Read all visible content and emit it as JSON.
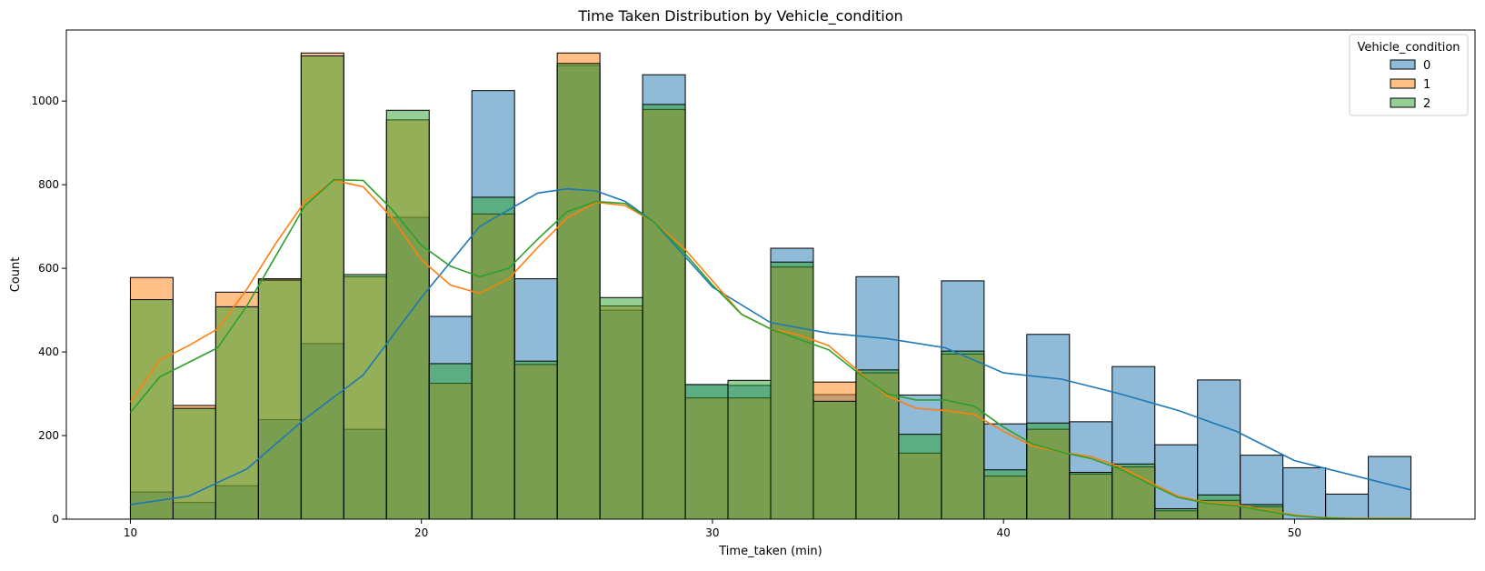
{
  "chart_data": {
    "type": "histogram",
    "title": "Time Taken Distribution by Vehicle_condition",
    "xlabel": "Time_taken (min)",
    "ylabel": "Count",
    "xlim": [
      7.8,
      56.2
    ],
    "ylim": [
      0,
      1170
    ],
    "x_ticks": [
      10,
      20,
      30,
      40,
      50
    ],
    "y_ticks": [
      0,
      200,
      400,
      600,
      800,
      1000
    ],
    "bin_edges": [
      10,
      11.467,
      12.933,
      14.4,
      15.867,
      17.333,
      18.8,
      20.267,
      21.733,
      23.2,
      24.667,
      26.133,
      27.6,
      29.067,
      30.533,
      32,
      33.467,
      34.933,
      36.4,
      37.867,
      39.333,
      40.8,
      42.267,
      43.733,
      45.2,
      46.667,
      48.133,
      49.6,
      51.067,
      52.533,
      54
    ],
    "legend": {
      "title": "Vehicle_condition",
      "placement": "upper right"
    },
    "series": [
      {
        "name": "0",
        "color": "#1f77b4",
        "values": [
          65,
          40,
          80,
          238,
          420,
          215,
          722,
          485,
          1025,
          575,
          1085,
          500,
          1063,
          322,
          320,
          648,
          298,
          580,
          297,
          570,
          228,
          442,
          233,
          365,
          178,
          333,
          153,
          123,
          60,
          150
        ],
        "kde": [
          [
            10,
            35
          ],
          [
            12,
            55
          ],
          [
            14,
            120
          ],
          [
            16,
            240
          ],
          [
            18,
            345
          ],
          [
            20,
            530
          ],
          [
            22,
            700
          ],
          [
            24,
            780
          ],
          [
            25,
            790
          ],
          [
            26,
            785
          ],
          [
            27,
            760
          ],
          [
            28,
            710
          ],
          [
            30,
            555
          ],
          [
            32,
            470
          ],
          [
            34,
            445
          ],
          [
            36,
            432
          ],
          [
            38,
            410
          ],
          [
            40,
            350
          ],
          [
            42,
            335
          ],
          [
            44,
            300
          ],
          [
            46,
            260
          ],
          [
            48,
            210
          ],
          [
            50,
            140
          ],
          [
            52,
            105
          ],
          [
            54,
            70
          ]
        ]
      },
      {
        "name": "1",
        "color": "#ff7f0e",
        "values": [
          578,
          272,
          543,
          575,
          1115,
          580,
          955,
          325,
          730,
          370,
          1115,
          510,
          980,
          290,
          290,
          603,
          328,
          350,
          158,
          395,
          103,
          215,
          108,
          125,
          20,
          45,
          30,
          0,
          0,
          0
        ],
        "kde": [
          [
            10,
            280
          ],
          [
            11,
            380
          ],
          [
            12,
            415
          ],
          [
            13,
            455
          ],
          [
            14,
            550
          ],
          [
            15,
            660
          ],
          [
            16,
            760
          ],
          [
            17,
            810
          ],
          [
            18,
            795
          ],
          [
            19,
            720
          ],
          [
            20,
            620
          ],
          [
            21,
            560
          ],
          [
            22,
            540
          ],
          [
            23,
            575
          ],
          [
            24,
            650
          ],
          [
            25,
            720
          ],
          [
            26,
            758
          ],
          [
            27,
            750
          ],
          [
            28,
            710
          ],
          [
            29,
            650
          ],
          [
            30,
            570
          ],
          [
            31,
            490
          ],
          [
            32,
            455
          ],
          [
            33,
            440
          ],
          [
            34,
            415
          ],
          [
            35,
            355
          ],
          [
            36,
            295
          ],
          [
            37,
            265
          ],
          [
            38,
            260
          ],
          [
            39,
            250
          ],
          [
            40,
            210
          ],
          [
            41,
            175
          ],
          [
            42,
            160
          ],
          [
            43,
            150
          ],
          [
            44,
            125
          ],
          [
            45,
            90
          ],
          [
            46,
            55
          ],
          [
            47,
            40
          ],
          [
            48,
            35
          ],
          [
            49,
            22
          ],
          [
            50,
            10
          ],
          [
            51,
            4
          ],
          [
            52,
            2
          ],
          [
            54,
            2
          ]
        ]
      },
      {
        "name": "2",
        "color": "#2ca02c",
        "values": [
          525,
          265,
          508,
          572,
          1108,
          585,
          978,
          372,
          770,
          378,
          1090,
          530,
          992,
          322,
          332,
          615,
          282,
          357,
          203,
          402,
          118,
          230,
          112,
          132,
          25,
          58,
          35,
          0,
          0,
          0
        ],
        "kde": [
          [
            10,
            255
          ],
          [
            11,
            340
          ],
          [
            12,
            375
          ],
          [
            13,
            410
          ],
          [
            14,
            510
          ],
          [
            15,
            630
          ],
          [
            16,
            750
          ],
          [
            17,
            812
          ],
          [
            18,
            810
          ],
          [
            19,
            740
          ],
          [
            20,
            655
          ],
          [
            21,
            605
          ],
          [
            22,
            580
          ],
          [
            23,
            600
          ],
          [
            24,
            670
          ],
          [
            25,
            735
          ],
          [
            26,
            760
          ],
          [
            27,
            755
          ],
          [
            28,
            710
          ],
          [
            29,
            640
          ],
          [
            30,
            560
          ],
          [
            31,
            490
          ],
          [
            32,
            455
          ],
          [
            33,
            430
          ],
          [
            34,
            405
          ],
          [
            35,
            350
          ],
          [
            36,
            300
          ],
          [
            37,
            285
          ],
          [
            38,
            285
          ],
          [
            39,
            270
          ],
          [
            40,
            220
          ],
          [
            41,
            180
          ],
          [
            42,
            160
          ],
          [
            43,
            145
          ],
          [
            44,
            120
          ],
          [
            45,
            85
          ],
          [
            46,
            52
          ],
          [
            47,
            38
          ],
          [
            48,
            32
          ],
          [
            49,
            20
          ],
          [
            50,
            8
          ],
          [
            51,
            3
          ],
          [
            52,
            1
          ],
          [
            54,
            1
          ]
        ]
      }
    ]
  }
}
